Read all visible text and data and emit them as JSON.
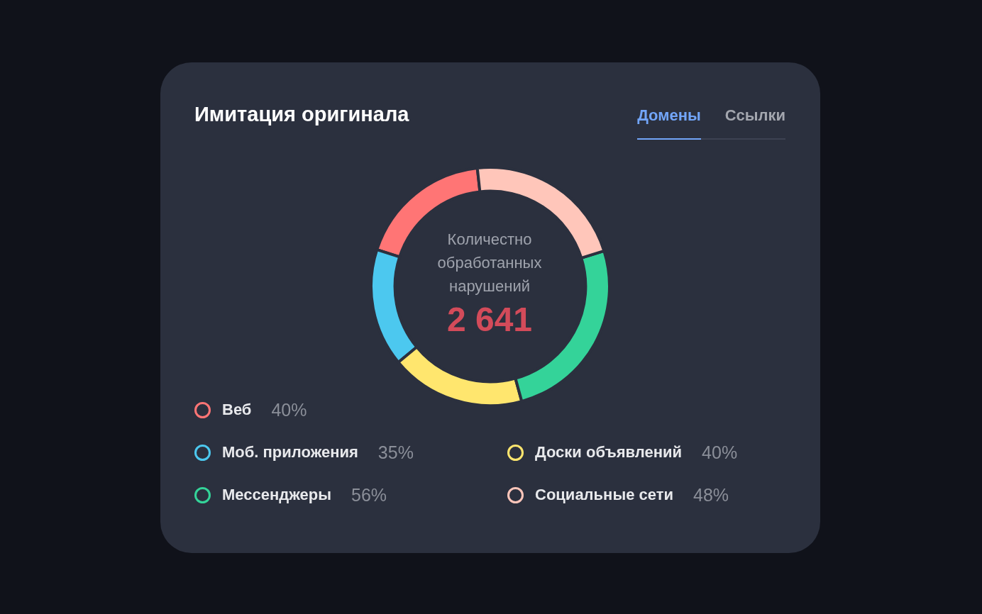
{
  "chart_data": {
    "type": "donut",
    "title": "Имитация оригинала",
    "categories": [
      "Веб",
      "Моб. приложения",
      "Доски объявлений",
      "Мессенджеры",
      "Социальные сети"
    ],
    "values": [
      40,
      35,
      40,
      56,
      48
    ],
    "value_labels": [
      "40%",
      "35%",
      "40%",
      "56%",
      "48%"
    ],
    "colors": [
      "#ff7575",
      "#4cc8ef",
      "#ffe66e",
      "#34d399",
      "#ffc6ba"
    ],
    "legend": "bottom",
    "annotations": [
      "Домены",
      "Ссылки",
      "Количестно обработанных нарушений",
      "2 641"
    ]
  }
}
